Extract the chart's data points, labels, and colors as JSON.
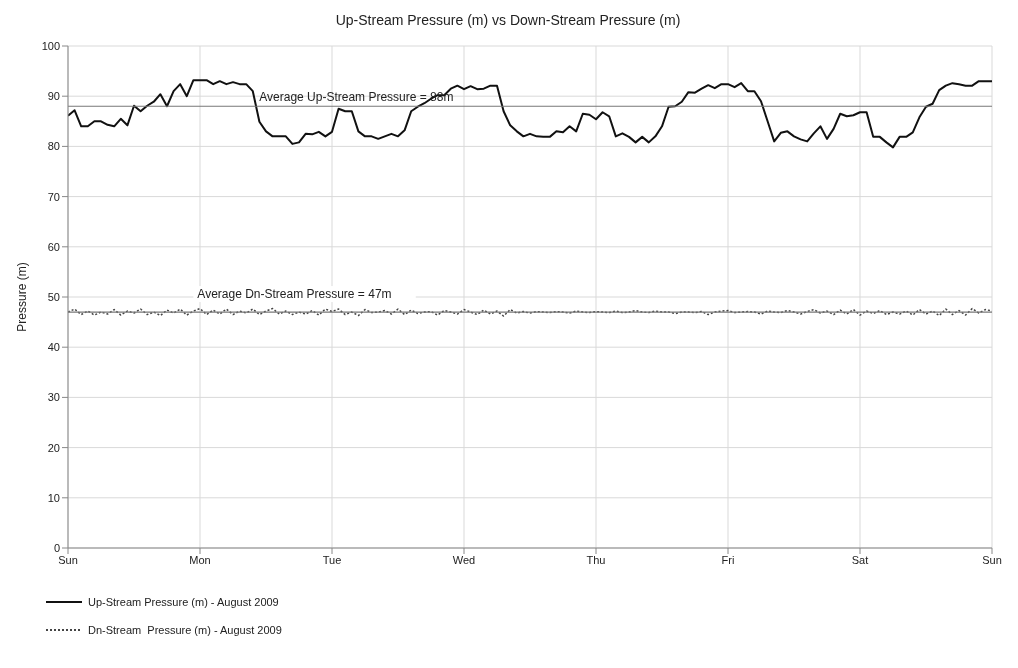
{
  "chart_data": {
    "type": "line",
    "title": "Up-Stream Pressure (m) vs Down-Stream Pressure (m)",
    "ylabel": "Pressure (m)",
    "categories": [
      "Sun",
      null,
      null,
      null,
      null,
      null,
      null,
      null,
      null,
      null,
      null,
      null,
      null,
      null,
      null,
      null,
      null,
      null,
      null,
      null,
      "Mon",
      null,
      null,
      null,
      null,
      null,
      null,
      null,
      null,
      null,
      null,
      null,
      null,
      null,
      null,
      null,
      null,
      null,
      null,
      null,
      "Tue",
      null,
      null,
      null,
      null,
      null,
      null,
      null,
      null,
      null,
      null,
      null,
      null,
      null,
      null,
      null,
      null,
      null,
      null,
      null,
      "Wed",
      null,
      null,
      null,
      null,
      null,
      null,
      null,
      null,
      null,
      null,
      null,
      null,
      null,
      null,
      null,
      null,
      null,
      null,
      null,
      "Thu",
      null,
      null,
      null,
      null,
      null,
      null,
      null,
      null,
      null,
      null,
      null,
      null,
      null,
      null,
      null,
      null,
      null,
      null,
      null,
      "Fri",
      null,
      null,
      null,
      null,
      null,
      null,
      null,
      null,
      null,
      null,
      null,
      null,
      null,
      null,
      null,
      null,
      null,
      null,
      null,
      "Sat",
      null,
      null,
      null,
      null,
      null,
      null,
      null,
      null,
      null,
      null,
      null,
      null,
      null,
      null,
      null,
      null,
      null,
      null,
      null,
      "Sun"
    ],
    "ylim": [
      0,
      100
    ],
    "yticks": [
      0,
      10,
      20,
      30,
      40,
      50,
      60,
      70,
      80,
      90,
      100
    ],
    "grid": true,
    "legend": "bottom left",
    "marker": "none",
    "ref_lines": [
      {
        "axis": "y",
        "value": 88,
        "label": "Average Up-Stream Pressure = 88m",
        "color": "#777777"
      },
      {
        "axis": "y",
        "value": 47,
        "label": "Average Dn-Stream Pressure = 47m",
        "color": "#777777"
      }
    ],
    "series": [
      {
        "name": "Up-Stream Pressure (m) - August 2009",
        "color": "#111111",
        "line_style": "solid",
        "values": [
          86.1,
          87.2,
          84,
          84,
          85,
          85,
          84.3,
          84,
          85.5,
          84.2,
          88.1,
          87,
          88.1,
          88.9,
          90.4,
          88,
          91,
          92.4,
          90,
          93.2,
          93.2,
          93.2,
          92.4,
          93,
          92.4,
          92.8,
          92.4,
          92.4,
          91,
          84.9,
          83,
          82,
          82,
          82,
          80.5,
          80.8,
          82.5,
          82.4,
          82.9,
          82,
          82.9,
          87.5,
          87,
          87,
          83,
          82,
          82,
          81.5,
          82,
          82.5,
          82,
          83.2,
          87,
          87.9,
          88.6,
          89.5,
          90.2,
          90.2,
          91.5,
          92.1,
          91.4,
          92,
          91.4,
          91.5,
          92.1,
          92.1,
          87,
          84.2,
          83,
          82,
          82.5,
          82,
          81.9,
          81.9,
          83,
          82.8,
          84,
          83,
          86.5,
          86.3,
          85.4,
          86.8,
          86,
          82,
          82.6,
          81.9,
          80.8,
          81.9,
          80.8,
          82,
          84,
          87.9,
          88,
          88.9,
          90.8,
          90.7,
          91.5,
          92.2,
          91.6,
          92.4,
          92.4,
          91.8,
          92.6,
          91,
          91,
          89,
          85,
          81,
          82.7,
          83,
          82,
          81.4,
          81,
          82.6,
          84,
          81.5,
          83.5,
          86.5,
          86,
          86.2,
          86.8,
          86.8,
          81.9,
          81.9,
          80.8,
          79.8,
          81.9,
          81.9,
          82.8,
          85.8,
          87.9,
          88.5,
          91.2,
          92.1,
          92.6,
          92.4,
          92.1,
          92.1,
          93,
          93,
          93
        ]
      },
      {
        "name": "Dn-Stream  Pressure (m) - August 2009",
        "color": "#444444",
        "line_style": "dotted",
        "values": [
          47,
          47.6,
          46.5,
          47.2,
          46.4,
          47,
          46.6,
          47.5,
          46.4,
          47.2,
          46.8,
          47.6,
          46.5,
          47,
          46.3,
          47.4,
          46.8,
          47.6,
          46.4,
          47.2,
          47.7,
          46.5,
          47.4,
          46.6,
          47.6,
          46.5,
          47.2,
          46.8,
          47.6,
          46.5,
          47.2,
          47.7,
          46.6,
          47.2,
          46.5,
          47,
          46.6,
          47.3,
          46.4,
          47.6,
          47.1,
          47.6,
          46.5,
          47,
          46.3,
          47.5,
          46.9,
          47,
          47.3,
          46.6,
          47.6,
          46.5,
          47.4,
          46.7,
          47,
          47.1,
          46.4,
          47.3,
          47,
          46.6,
          47.5,
          47,
          46.5,
          47.4,
          46.6,
          47.2,
          46.2,
          47.5,
          46.8,
          47.1,
          46.8,
          47.1,
          47,
          46.9,
          47.1,
          47,
          46.8,
          47.2,
          47,
          46.9,
          47.1,
          47,
          46.9,
          47.2,
          46.9,
          47,
          47.3,
          47,
          46.9,
          47.2,
          47,
          47,
          46.7,
          47,
          47,
          46.9,
          47.1,
          46.5,
          47,
          47.2,
          47.3,
          46.9,
          47,
          47.1,
          47,
          46.6,
          47.2,
          47,
          46.9,
          47.3,
          47,
          46.6,
          47.1,
          47.5,
          46.8,
          47.2,
          46.5,
          47.4,
          46.6,
          47.5,
          46.4,
          47.2,
          46.7,
          47.3,
          46.5,
          47,
          46.6,
          47.2,
          46.4,
          47.5,
          46.6,
          47.2,
          46.3,
          47.6,
          46.5,
          47.3,
          46.4,
          47.7,
          46.8,
          47.5,
          47.2
        ]
      }
    ]
  }
}
